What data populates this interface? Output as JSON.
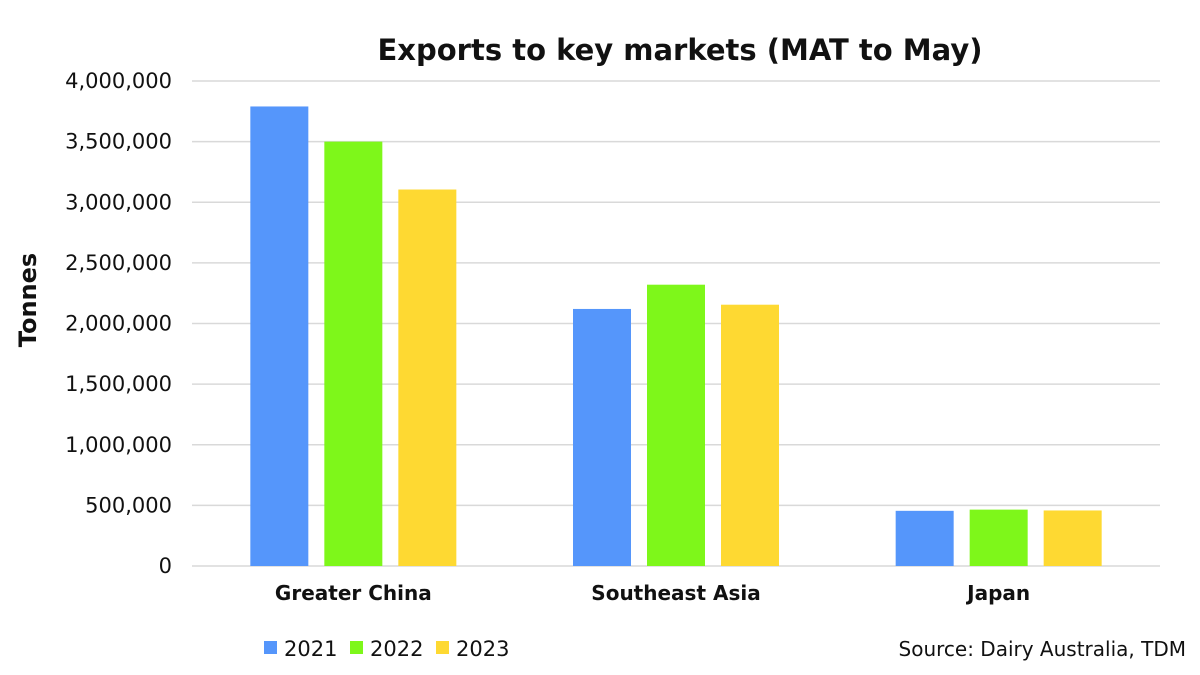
{
  "chart_data": {
    "type": "bar",
    "title": "Exports to key markets (MAT to May)",
    "xlabel": "",
    "ylabel": "Tonnes",
    "categories": [
      "Greater China",
      "Southeast Asia",
      "Japan"
    ],
    "series": [
      {
        "name": "2021",
        "color": "#5596fb",
        "values": [
          3790000,
          2120000,
          455000
        ]
      },
      {
        "name": "2022",
        "color": "#7ef71a",
        "values": [
          3500000,
          2320000,
          465000
        ]
      },
      {
        "name": "2023",
        "color": "#fed932",
        "values": [
          3105000,
          2155000,
          458000
        ]
      }
    ],
    "ylim": [
      0,
      4000000
    ],
    "yticks": [
      0,
      500000,
      1000000,
      1500000,
      2000000,
      2500000,
      3000000,
      3500000,
      4000000
    ],
    "ytick_labels": [
      "0",
      "500,000",
      "1,000,000",
      "1,500,000",
      "2,000,000",
      "2,500,000",
      "3,000,000",
      "3,500,000",
      "4,000,000"
    ],
    "grid": true,
    "legend_position": "bottom-left",
    "source": "Source: Dairy Australia, TDM"
  }
}
